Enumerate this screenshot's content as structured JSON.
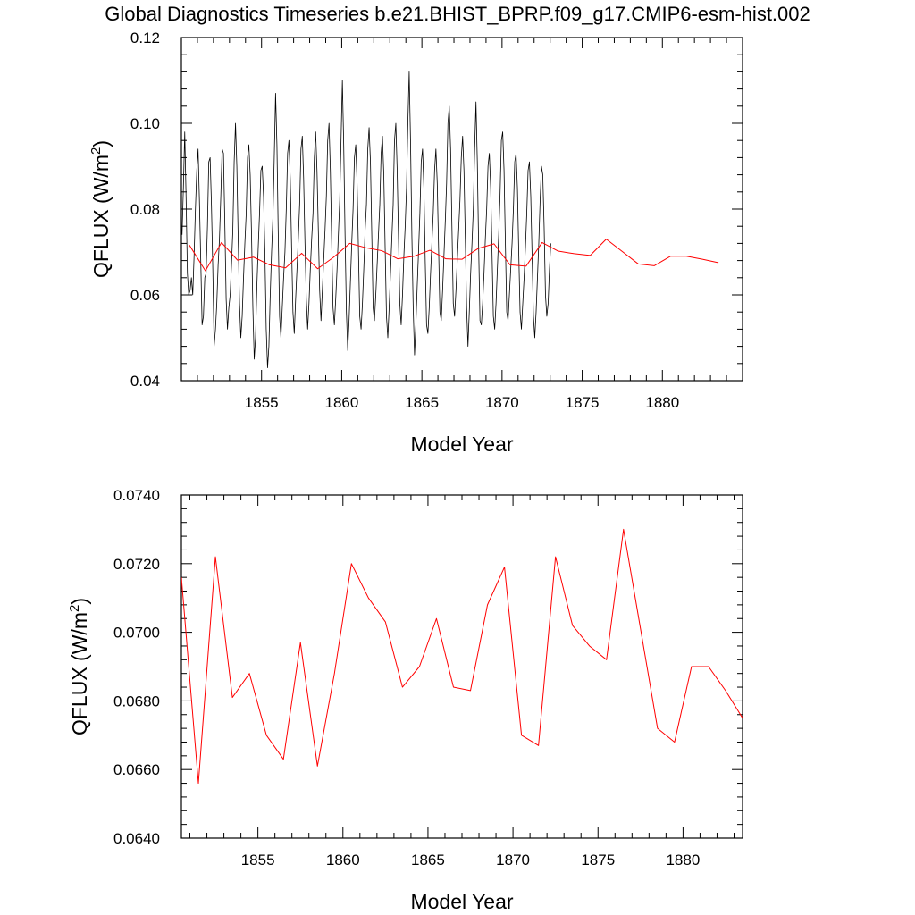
{
  "title": "Global Diagnostics Timeseries b.e21.BHIST_BPRP.f09_g17.CMIP6-esm-hist.002",
  "colors": {
    "monthly": "#000000",
    "annual": "#ff0000",
    "axes": "#000000"
  },
  "chart_data": [
    {
      "type": "line",
      "xlabel": "Model Year",
      "ylabel": "QFLUX (W/m²)",
      "ylabel_base": "QFLUX (W/m",
      "ylabel_sup": "2",
      "ylabel_close": ")",
      "xlim": [
        1850.0,
        1885.0
      ],
      "ylim": [
        0.04,
        0.12
      ],
      "xticks": [
        1855,
        1860,
        1865,
        1870,
        1875,
        1880
      ],
      "xtick_labels": [
        "1855",
        "1860",
        "1865",
        "1870",
        "1875",
        "1880"
      ],
      "yticks": [
        0.04,
        0.06,
        0.08,
        0.1,
        0.12
      ],
      "ytick_labels": [
        "0.04",
        "0.06",
        "0.08",
        "0.10",
        "0.12"
      ],
      "series": [
        {
          "color": "#000000",
          "x_start": 1850.0417,
          "x_step": 0.08333,
          "values": [
            0.074,
            0.085,
            0.098,
            0.083,
            0.065,
            0.06,
            0.061,
            0.064,
            0.06,
            0.069,
            0.08,
            0.089,
            0.094,
            0.082,
            0.068,
            0.053,
            0.055,
            0.064,
            0.065,
            0.076,
            0.091,
            0.092,
            0.081,
            0.066,
            0.048,
            0.052,
            0.058,
            0.067,
            0.073,
            0.083,
            0.094,
            0.093,
            0.077,
            0.059,
            0.052,
            0.057,
            0.06,
            0.067,
            0.075,
            0.091,
            0.1,
            0.09,
            0.073,
            0.058,
            0.05,
            0.055,
            0.064,
            0.072,
            0.079,
            0.092,
            0.095,
            0.088,
            0.074,
            0.057,
            0.045,
            0.05,
            0.062,
            0.071,
            0.079,
            0.089,
            0.09,
            0.083,
            0.07,
            0.052,
            0.043,
            0.048,
            0.06,
            0.07,
            0.078,
            0.092,
            0.107,
            0.095,
            0.074,
            0.055,
            0.05,
            0.057,
            0.064,
            0.07,
            0.08,
            0.093,
            0.096,
            0.087,
            0.071,
            0.056,
            0.051,
            0.059,
            0.066,
            0.073,
            0.081,
            0.094,
            0.097,
            0.087,
            0.072,
            0.059,
            0.052,
            0.058,
            0.066,
            0.073,
            0.079,
            0.092,
            0.098,
            0.089,
            0.075,
            0.061,
            0.054,
            0.061,
            0.068,
            0.075,
            0.083,
            0.096,
            0.1,
            0.089,
            0.072,
            0.057,
            0.053,
            0.059,
            0.066,
            0.074,
            0.082,
            0.096,
            0.11,
            0.095,
            0.074,
            0.056,
            0.047,
            0.054,
            0.063,
            0.072,
            0.08,
            0.092,
            0.095,
            0.086,
            0.071,
            0.055,
            0.052,
            0.058,
            0.066,
            0.075,
            0.081,
            0.094,
            0.099,
            0.091,
            0.074,
            0.057,
            0.054,
            0.06,
            0.067,
            0.074,
            0.081,
            0.093,
            0.097,
            0.088,
            0.071,
            0.055,
            0.05,
            0.057,
            0.065,
            0.073,
            0.081,
            0.096,
            0.1,
            0.089,
            0.073,
            0.058,
            0.053,
            0.06,
            0.069,
            0.076,
            0.085,
            0.1,
            0.112,
            0.096,
            0.074,
            0.057,
            0.046,
            0.053,
            0.062,
            0.07,
            0.079,
            0.091,
            0.094,
            0.085,
            0.068,
            0.053,
            0.051,
            0.057,
            0.065,
            0.072,
            0.079,
            0.089,
            0.094,
            0.086,
            0.071,
            0.056,
            0.054,
            0.061,
            0.069,
            0.077,
            0.086,
            0.1,
            0.104,
            0.094,
            0.076,
            0.058,
            0.055,
            0.061,
            0.068,
            0.075,
            0.082,
            0.092,
            0.097,
            0.089,
            0.073,
            0.057,
            0.048,
            0.056,
            0.065,
            0.072,
            0.08,
            0.094,
            0.105,
            0.091,
            0.071,
            0.054,
            0.053,
            0.058,
            0.065,
            0.073,
            0.08,
            0.09,
            0.093,
            0.085,
            0.07,
            0.055,
            0.052,
            0.058,
            0.066,
            0.074,
            0.083,
            0.096,
            0.098,
            0.089,
            0.072,
            0.056,
            0.054,
            0.06,
            0.066,
            0.072,
            0.08,
            0.091,
            0.093,
            0.085,
            0.07,
            0.056,
            0.052,
            0.058,
            0.064,
            0.071,
            0.079,
            0.089,
            0.091,
            0.083,
            0.069,
            0.055,
            0.05,
            0.056,
            0.064,
            0.072,
            0.082,
            0.09,
            0.088,
            0.076,
            0.06,
            0.055,
            0.058,
            0.066,
            0.072
          ]
        },
        {
          "color": "#ff0000",
          "x": [
            1850.5,
            1851.5,
            1852.5,
            1853.5,
            1854.5,
            1855.5,
            1856.5,
            1857.5,
            1858.5,
            1859.5,
            1860.5,
            1861.5,
            1862.5,
            1863.5,
            1864.5,
            1865.5,
            1866.5,
            1867.5,
            1868.5,
            1869.5,
            1870.5,
            1871.5,
            1872.5,
            1873.5,
            1874.5,
            1875.5,
            1876.5,
            1877.5,
            1878.5,
            1879.5,
            1880.5,
            1881.5,
            1882.5,
            1883.5
          ],
          "values": [
            0.0716,
            0.0656,
            0.0722,
            0.0681,
            0.0688,
            0.067,
            0.0663,
            0.0697,
            0.0661,
            0.0688,
            0.072,
            0.071,
            0.0703,
            0.0684,
            0.069,
            0.0704,
            0.0684,
            0.0683,
            0.0708,
            0.0719,
            0.067,
            0.0667,
            0.0722,
            0.0702,
            0.0696,
            0.0692,
            0.073,
            0.0701,
            0.0672,
            0.0668,
            0.069,
            0.069,
            0.0683,
            0.0675
          ]
        }
      ]
    },
    {
      "type": "line",
      "xlabel": "Model Year",
      "ylabel": "QFLUX (W/m²)",
      "ylabel_base": "QFLUX (W/m",
      "ylabel_sup": "2",
      "ylabel_close": ")",
      "xlim": [
        1850.5,
        1883.5
      ],
      "ylim": [
        0.064,
        0.074
      ],
      "xticks": [
        1855,
        1860,
        1865,
        1870,
        1875,
        1880
      ],
      "xtick_labels": [
        "1855",
        "1860",
        "1865",
        "1870",
        "1875",
        "1880"
      ],
      "yticks": [
        0.064,
        0.066,
        0.068,
        0.07,
        0.072,
        0.074
      ],
      "ytick_labels": [
        "0.0640",
        "0.0660",
        "0.0680",
        "0.0700",
        "0.0720",
        "0.0740"
      ],
      "series": [
        {
          "color": "#ff0000",
          "x": [
            1850.5,
            1851.5,
            1852.5,
            1853.5,
            1854.5,
            1855.5,
            1856.5,
            1857.5,
            1858.5,
            1859.5,
            1860.5,
            1861.5,
            1862.5,
            1863.5,
            1864.5,
            1865.5,
            1866.5,
            1867.5,
            1868.5,
            1869.5,
            1870.5,
            1871.5,
            1872.5,
            1873.5,
            1874.5,
            1875.5,
            1876.5,
            1877.5,
            1878.5,
            1879.5,
            1880.5,
            1881.5,
            1882.5,
            1883.5
          ],
          "values": [
            0.0716,
            0.0656,
            0.0722,
            0.0681,
            0.0688,
            0.067,
            0.0663,
            0.0697,
            0.0661,
            0.0688,
            0.072,
            0.071,
            0.0703,
            0.0684,
            0.069,
            0.0704,
            0.0684,
            0.0683,
            0.0708,
            0.0719,
            0.067,
            0.0667,
            0.0722,
            0.0702,
            0.0696,
            0.0692,
            0.073,
            0.0701,
            0.0672,
            0.0668,
            0.069,
            0.069,
            0.0683,
            0.0675
          ]
        }
      ]
    }
  ]
}
